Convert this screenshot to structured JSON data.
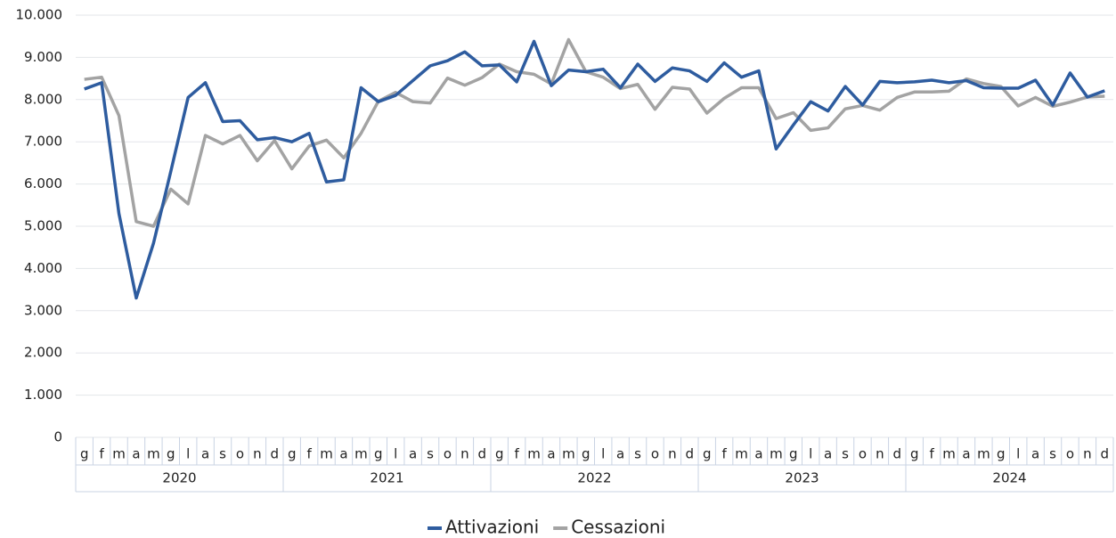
{
  "chart_data": {
    "type": "line",
    "categories": [
      "g",
      "f",
      "m",
      "a",
      "m",
      "g",
      "l",
      "a",
      "s",
      "o",
      "n",
      "d",
      "g",
      "f",
      "m",
      "a",
      "m",
      "g",
      "l",
      "a",
      "s",
      "o",
      "n",
      "d",
      "g",
      "f",
      "m",
      "a",
      "m",
      "g",
      "l",
      "a",
      "s",
      "o",
      "n",
      "d",
      "g",
      "f",
      "m",
      "a",
      "m",
      "g",
      "l",
      "a",
      "s",
      "o",
      "n",
      "d",
      "g",
      "f",
      "m",
      "a",
      "m",
      "g",
      "l",
      "a",
      "s",
      "o",
      "n",
      "d"
    ],
    "groups": [
      "2020",
      "2021",
      "2022",
      "2023",
      "2024"
    ],
    "series": [
      {
        "name": "Attivazioni",
        "color": "#2e5c9f",
        "values": [
          8250,
          8400,
          5300,
          3300,
          4600,
          6300,
          8050,
          8400,
          7480,
          7500,
          7050,
          7100,
          7000,
          7200,
          6050,
          6100,
          8280,
          7950,
          8100,
          8450,
          8800,
          8920,
          9130,
          8800,
          8820,
          8420,
          9380,
          8330,
          8700,
          8660,
          8720,
          8280,
          8840,
          8430,
          8750,
          8680,
          8430,
          8870,
          8530,
          8680,
          6830,
          7400,
          7950,
          7730,
          8310,
          7870,
          8430,
          8400,
          8420,
          8460,
          8400,
          8450,
          8280,
          8270,
          8270,
          8460,
          7870,
          8630,
          8060,
          8210
        ]
      },
      {
        "name": "Cessazioni",
        "color": "#a3a3a3",
        "values": [
          8480,
          8530,
          7620,
          5110,
          5000,
          5880,
          5530,
          7150,
          6950,
          7150,
          6550,
          7030,
          6360,
          6900,
          7040,
          6620,
          7200,
          7960,
          8170,
          7950,
          7920,
          8510,
          8340,
          8520,
          8840,
          8660,
          8600,
          8370,
          9420,
          8660,
          8530,
          8260,
          8360,
          7770,
          8290,
          8250,
          7680,
          8030,
          8280,
          8280,
          7550,
          7690,
          7270,
          7330,
          7780,
          7860,
          7750,
          8050,
          8180,
          8180,
          8200,
          8490,
          8380,
          8310,
          7850,
          8050,
          7840,
          7940,
          8060,
          8080
        ]
      }
    ],
    "ylim": [
      0,
      10000
    ],
    "yticks": [
      {
        "value": 0,
        "label": "0"
      },
      {
        "value": 1000,
        "label": "1.000"
      },
      {
        "value": 2000,
        "label": "2.000"
      },
      {
        "value": 3000,
        "label": "3.000"
      },
      {
        "value": 4000,
        "label": "4.000"
      },
      {
        "value": 5000,
        "label": "5.000"
      },
      {
        "value": 6000,
        "label": "6.000"
      },
      {
        "value": 7000,
        "label": "7.000"
      },
      {
        "value": 8000,
        "label": "8.000"
      },
      {
        "value": 9000,
        "label": "9.000"
      },
      {
        "value": 10000,
        "label": "10.000"
      }
    ],
    "grid": true,
    "legend": "bottom"
  }
}
